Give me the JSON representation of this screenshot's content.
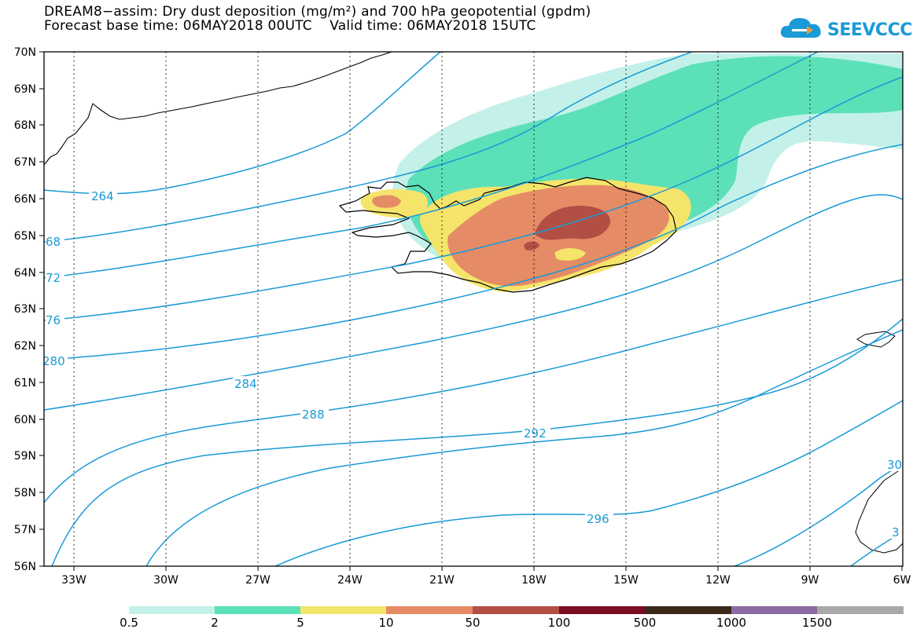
{
  "title_line1": "DREAM8−assim: Dry dust deposition (mg/m²) and 700 hPa geopotential (gpdm)",
  "title_line2": "Forecast base time: 06MAY2018 00UTC    Valid time: 06MAY2018 15UTC",
  "logo_text": "SEEVCCC",
  "logo_icon": "cloud-arrow-icon",
  "lat_labels": [
    "70N",
    "69N",
    "68N",
    "67N",
    "66N",
    "65N",
    "64N",
    "63N",
    "62N",
    "61N",
    "60N",
    "59N",
    "58N",
    "57N",
    "56N"
  ],
  "lon_labels": [
    "33W",
    "30W",
    "27W",
    "24W",
    "21W",
    "18W",
    "15W",
    "12W",
    "9W",
    "6W"
  ],
  "contour_labels": [
    "264",
    "68",
    "72",
    "76",
    "280",
    "284",
    "288",
    "292",
    "296",
    "30",
    "3"
  ],
  "legend": {
    "labels": [
      "0.5",
      "2",
      "5",
      "10",
      "50",
      "100",
      "500",
      "1000",
      "1500"
    ],
    "colors": [
      "#c3f1e9",
      "#5ce0b8",
      "#f5e46a",
      "#e58b66",
      "#b24f44",
      "#7a0d23",
      "#3b2a1a",
      "#8c6aa2",
      "#a9a9a9"
    ]
  },
  "colors": {
    "contour": "#1a9ad6",
    "deposition_0_5": "#c3f1e9",
    "deposition_2": "#5ce0b8",
    "deposition_5": "#f5e46a",
    "deposition_10": "#e58b66",
    "deposition_50": "#b24f44"
  }
}
